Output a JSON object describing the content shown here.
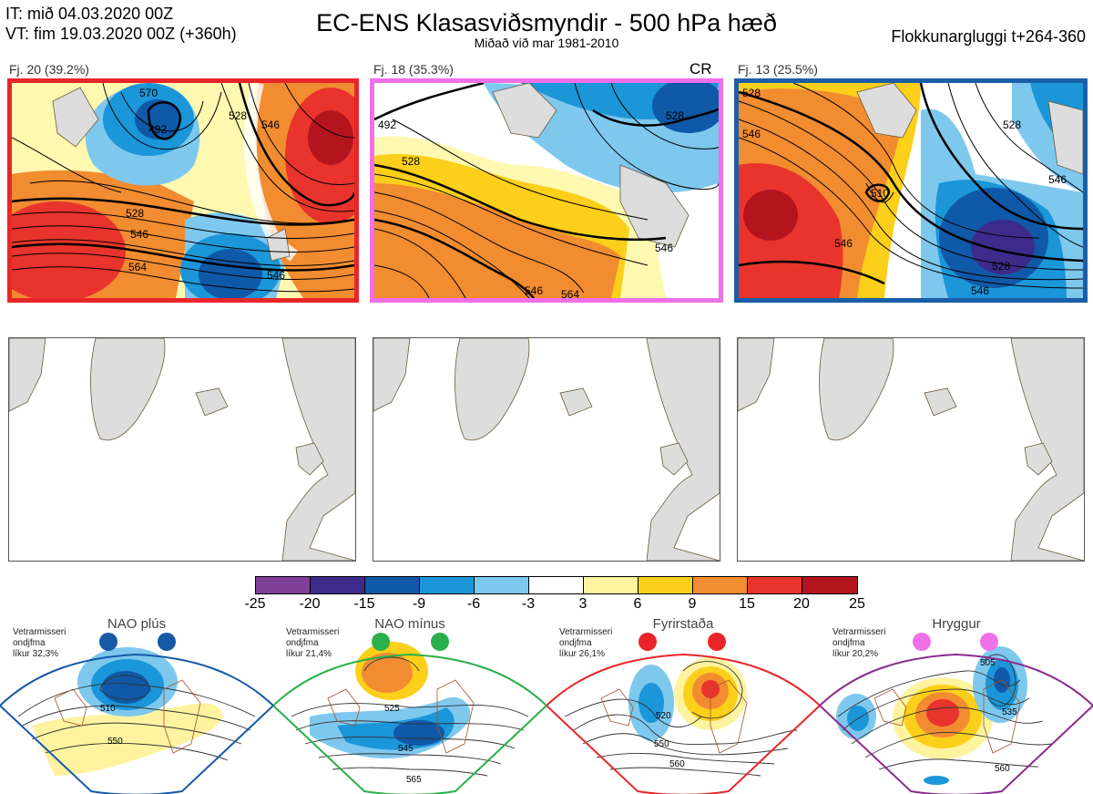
{
  "header": {
    "it_line": "IT: mið 04.03.2020 00Z",
    "vt_line": "VT: fim 19.03.2020 00Z  (+360h)",
    "title": "EC-ENS Klasasviðsmyndir - 500 hPa hæð",
    "subtitle": "Miðað við mar 1981-2010",
    "window": "Flokkunargluggi t+264-360"
  },
  "clusters": [
    {
      "label": "Fj. 20 (39.2%)",
      "border_color": "#e8262a",
      "contours": [
        "528",
        "546",
        "564",
        "546",
        "528",
        "546",
        "492",
        "570"
      ]
    },
    {
      "label": "Fj. 18 (35.3%)",
      "border_color": "#f070e8",
      "contours": [
        "528",
        "528",
        "546",
        "546",
        "564",
        "492"
      ],
      "tag": "CR"
    },
    {
      "label": "Fj. 13 (25.5%)",
      "border_color": "#1a5ea8",
      "contours": [
        "528",
        "546",
        "510",
        "528",
        "546",
        "546",
        "528",
        "546"
      ]
    }
  ],
  "colorbar": {
    "ticks": [
      "-25",
      "-20",
      "-15",
      "-9",
      "-6",
      "-3",
      "3",
      "6",
      "9",
      "15",
      "20",
      "25"
    ],
    "colors": [
      "#7f3f98",
      "#3d2b8c",
      "#1059a8",
      "#1b96d8",
      "#7ec8ee",
      "#ffffff",
      "#fff3a0",
      "#fccf1a",
      "#f28c30",
      "#e8342c",
      "#b4141e"
    ]
  },
  "regimes": [
    {
      "title": "NAO plús",
      "info": [
        "Vetrarmisseri",
        "ondjfma",
        "líkur 32,3%"
      ],
      "color": "#1659a8",
      "contours": [
        "510",
        "550"
      ]
    },
    {
      "title": "NAO mínus",
      "info": [
        "Vetrarmisseri",
        "ondjfma",
        "líkur 21,4%"
      ],
      "color": "#2ab04a",
      "contours": [
        "525",
        "545",
        "565"
      ]
    },
    {
      "title": "Fyrirstaða",
      "info": [
        "Vetrarmisseri",
        "ondjfma",
        "líkur 26,1%"
      ],
      "color": "#e8262a",
      "contours": [
        "520",
        "550",
        "560"
      ]
    },
    {
      "title": "Hryggur",
      "info": [
        "Vetrarmisseri",
        "ondjfma",
        "líkur 20,2%"
      ],
      "color": "#f070e8",
      "contours": [
        "505",
        "535",
        "560"
      ]
    }
  ]
}
